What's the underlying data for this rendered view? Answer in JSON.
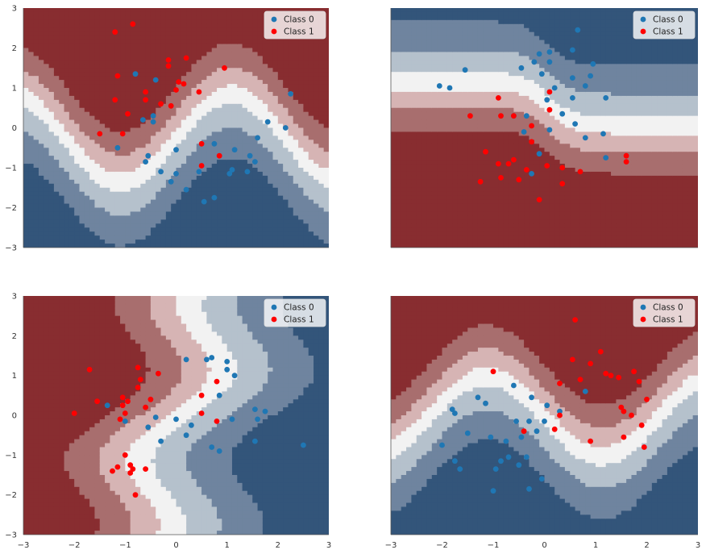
{
  "figure_title": "",
  "legend": {
    "entries": [
      {
        "label": "Class 0",
        "color": "#1f77b4"
      },
      {
        "label": "Class 1",
        "color": "#ff0000"
      }
    ]
  },
  "colors": {
    "class0_point": "#1f77b4",
    "class1_point": "#ff0000",
    "contour_levels_low_to_high": [
      "#33557a",
      "#6f849f",
      "#b5c1cc",
      "#f2f2f2",
      "#d6b4b4",
      "#a86e6e",
      "#882d30"
    ]
  },
  "chart_data": [
    {
      "type": "scatter",
      "subplot": "top-left",
      "title": "",
      "xlabel": "",
      "ylabel": "",
      "xlim": [
        -3,
        3
      ],
      "ylim": [
        -3,
        3
      ],
      "xticks": [],
      "yticks": [
        -3,
        -2,
        -1,
        0,
        1,
        2,
        3
      ],
      "ytick_labels": [
        "−3",
        "−2",
        "−1",
        "0",
        "1",
        "2",
        "3"
      ],
      "grid": false,
      "legend_position": "top-right",
      "background": "contour decision boundary: Class 1 (red) upper-left, Class 0 (blue) lower-right, S-shaped boundary",
      "series": [
        {
          "name": "Class 0",
          "points": [
            [
              -0.8,
              1.35
            ],
            [
              -0.4,
              1.2
            ],
            [
              -1.15,
              -0.5
            ],
            [
              -0.65,
              0.2
            ],
            [
              -0.45,
              0.3
            ],
            [
              -0.45,
              0.15
            ],
            [
              -0.55,
              -0.7
            ],
            [
              -0.6,
              -0.85
            ],
            [
              -0.3,
              -1.1
            ],
            [
              -0.1,
              -1.35
            ],
            [
              0.0,
              -0.55
            ],
            [
              0.0,
              -1.15
            ],
            [
              0.2,
              -1.55
            ],
            [
              0.45,
              -1.1
            ],
            [
              0.55,
              -1.85
            ],
            [
              0.75,
              -1.75
            ],
            [
              0.75,
              -0.4
            ],
            [
              1.05,
              -1.15
            ],
            [
              1.1,
              -1.05
            ],
            [
              1.15,
              -0.55
            ],
            [
              1.4,
              -1.1
            ],
            [
              1.45,
              -0.7
            ],
            [
              1.55,
              -0.85
            ],
            [
              1.6,
              -0.25
            ],
            [
              1.8,
              0.15
            ],
            [
              2.15,
              0.0
            ],
            [
              2.25,
              0.85
            ]
          ]
        },
        {
          "name": "Class 1",
          "points": [
            [
              -1.2,
              2.4
            ],
            [
              -0.85,
              2.6
            ],
            [
              -1.15,
              1.3
            ],
            [
              -1.2,
              0.7
            ],
            [
              -1.05,
              -0.15
            ],
            [
              -1.5,
              -0.15
            ],
            [
              -0.95,
              0.35
            ],
            [
              -0.6,
              0.9
            ],
            [
              -0.6,
              0.7
            ],
            [
              -0.3,
              0.6
            ],
            [
              -0.1,
              0.55
            ],
            [
              -0.15,
              1.55
            ],
            [
              -0.15,
              1.7
            ],
            [
              0.0,
              0.95
            ],
            [
              0.05,
              1.15
            ],
            [
              0.15,
              1.1
            ],
            [
              0.2,
              1.75
            ],
            [
              0.45,
              0.9
            ],
            [
              0.5,
              -0.4
            ],
            [
              0.5,
              -0.95
            ],
            [
              0.85,
              -0.7
            ],
            [
              0.95,
              1.5
            ]
          ]
        }
      ]
    },
    {
      "type": "scatter",
      "subplot": "top-right",
      "title": "",
      "xlabel": "",
      "ylabel": "",
      "xlim": [
        -3,
        3
      ],
      "ylim": [
        -3,
        3
      ],
      "xticks": [],
      "yticks": [],
      "grid": false,
      "legend_position": "top-right",
      "background": "contour decision boundary: Class 0 (blue) top, Class 1 (red) bottom, wavy horizontal boundary",
      "series": [
        {
          "name": "Class 0",
          "points": [
            [
              -2.05,
              1.05
            ],
            [
              -1.85,
              1.0
            ],
            [
              -1.55,
              1.45
            ],
            [
              -0.45,
              1.5
            ],
            [
              -0.35,
              0.3
            ],
            [
              -0.4,
              -0.1
            ],
            [
              -0.2,
              1.65
            ],
            [
              -0.1,
              1.85
            ],
            [
              -0.05,
              1.35
            ],
            [
              0.1,
              1.65
            ],
            [
              0.1,
              1.9
            ],
            [
              0.05,
              0.7
            ],
            [
              0.1,
              -0.05
            ],
            [
              0.2,
              1.0
            ],
            [
              0.55,
              1.95
            ],
            [
              0.65,
              2.45
            ],
            [
              0.55,
              1.25
            ],
            [
              0.55,
              0.75
            ],
            [
              0.6,
              0.1
            ],
            [
              0.8,
              1.05
            ],
            [
              0.9,
              1.3
            ],
            [
              0.95,
              1.6
            ],
            [
              0.8,
              -0.25
            ],
            [
              1.2,
              0.75
            ],
            [
              1.15,
              -0.15
            ],
            [
              1.2,
              -0.75
            ],
            [
              0.35,
              0.35
            ],
            [
              -0.1,
              -0.65
            ],
            [
              -0.25,
              -1.15
            ],
            [
              -0.6,
              0.3
            ]
          ]
        },
        {
          "name": "Class 1",
          "points": [
            [
              -1.45,
              0.3
            ],
            [
              -0.9,
              0.75
            ],
            [
              -0.85,
              0.3
            ],
            [
              -0.6,
              0.3
            ],
            [
              -0.25,
              -0.35
            ],
            [
              -0.25,
              0.05
            ],
            [
              0.1,
              0.45
            ],
            [
              0.1,
              0.9
            ],
            [
              -0.6,
              -0.8
            ],
            [
              -0.7,
              -0.9
            ],
            [
              -0.9,
              -0.9
            ],
            [
              -1.15,
              -0.6
            ],
            [
              -1.25,
              -1.35
            ],
            [
              -0.85,
              -1.25
            ],
            [
              -0.5,
              -1.3
            ],
            [
              -0.35,
              -1.05
            ],
            [
              -0.1,
              -1.8
            ],
            [
              0.05,
              -0.95
            ],
            [
              0.35,
              -1.0
            ],
            [
              0.35,
              -1.4
            ],
            [
              0.7,
              -1.1
            ],
            [
              1.6,
              -0.7
            ],
            [
              1.6,
              -0.85
            ]
          ]
        }
      ]
    },
    {
      "type": "scatter",
      "subplot": "bottom-left",
      "title": "",
      "xlabel": "",
      "ylabel": "",
      "xlim": [
        -3,
        3
      ],
      "ylim": [
        -3,
        3
      ],
      "xticks": [
        -3,
        -2,
        -1,
        0,
        1,
        2,
        3
      ],
      "xtick_labels": [
        "−3",
        "−2",
        "−1",
        "0",
        "1",
        "2",
        "3"
      ],
      "yticks": [
        -3,
        -2,
        -1,
        0,
        1,
        2,
        3
      ],
      "ytick_labels": [
        "−3",
        "−2",
        "−1",
        "0",
        "1",
        "2",
        "3"
      ],
      "grid": false,
      "legend_position": "top-right",
      "background": "contour decision boundary: Class 1 (red) left, Class 0 (blue) right, curved diagonal boundary",
      "series": [
        {
          "name": "Class 0",
          "points": [
            [
              -1.35,
              0.25
            ],
            [
              -1.0,
              -0.15
            ],
            [
              -0.55,
              -0.3
            ],
            [
              -0.4,
              -0.05
            ],
            [
              -0.3,
              -0.65
            ],
            [
              0.0,
              -0.1
            ],
            [
              0.2,
              -0.5
            ],
            [
              0.2,
              1.4
            ],
            [
              0.3,
              -0.25
            ],
            [
              0.6,
              1.4
            ],
            [
              0.7,
              1.45
            ],
            [
              0.85,
              0.5
            ],
            [
              0.85,
              -0.9
            ],
            [
              0.7,
              -0.8
            ],
            [
              1.0,
              1.35
            ],
            [
              1.0,
              1.15
            ],
            [
              1.15,
              1.0
            ],
            [
              1.1,
              -0.1
            ],
            [
              1.55,
              -0.65
            ],
            [
              1.55,
              0.15
            ],
            [
              1.6,
              -0.1
            ],
            [
              1.75,
              0.1
            ],
            [
              2.5,
              -0.75
            ]
          ]
        },
        {
          "name": "Class 1",
          "points": [
            [
              -2.0,
              0.05
            ],
            [
              -1.7,
              1.15
            ],
            [
              -1.55,
              0.35
            ],
            [
              -1.1,
              -0.1
            ],
            [
              -1.05,
              0.45
            ],
            [
              -1.05,
              0.25
            ],
            [
              -1.0,
              0.05
            ],
            [
              -1.0,
              -1.0
            ],
            [
              -0.95,
              0.35
            ],
            [
              -1.15,
              -1.3
            ],
            [
              -1.25,
              -1.4
            ],
            [
              -0.9,
              -1.25
            ],
            [
              -0.9,
              -1.45
            ],
            [
              -0.85,
              -1.35
            ],
            [
              -0.8,
              -2.0
            ],
            [
              -0.7,
              0.9
            ],
            [
              -0.75,
              1.2
            ],
            [
              -0.75,
              0.7
            ],
            [
              -0.6,
              -1.35
            ],
            [
              -0.5,
              0.4
            ],
            [
              -0.35,
              1.05
            ],
            [
              -0.6,
              0.2
            ],
            [
              0.5,
              0.5
            ],
            [
              0.5,
              0.05
            ],
            [
              0.8,
              -0.15
            ],
            [
              0.8,
              0.85
            ]
          ]
        }
      ]
    },
    {
      "type": "scatter",
      "subplot": "bottom-right",
      "title": "",
      "xlabel": "",
      "ylabel": "",
      "xlim": [
        -3,
        3
      ],
      "ylim": [
        -3,
        3
      ],
      "xticks": [
        -3,
        -2,
        -1,
        0,
        1,
        2,
        3
      ],
      "xtick_labels": [
        "−3",
        "−2",
        "−1",
        "0",
        "1",
        "2",
        "3"
      ],
      "yticks": [],
      "grid": false,
      "legend_position": "top-right",
      "background": "contour decision boundary: Class 1 (red) upper-right, Class 0 (blue) lower-left, S-shaped boundary",
      "series": [
        {
          "name": "Class 0",
          "points": [
            [
              -2.0,
              -0.75
            ],
            [
              -1.8,
              0.15
            ],
            [
              -1.75,
              0.05
            ],
            [
              -1.5,
              -0.45
            ],
            [
              -1.3,
              0.45
            ],
            [
              -1.15,
              0.3
            ],
            [
              -1.05,
              -0.55
            ],
            [
              -0.95,
              -1.35
            ],
            [
              -0.85,
              -1.15
            ],
            [
              -0.75,
              -0.65
            ],
            [
              -0.7,
              -1.05
            ],
            [
              -0.6,
              0.75
            ],
            [
              -0.55,
              -0.15
            ],
            [
              -0.5,
              -1.25
            ],
            [
              -0.45,
              -0.55
            ],
            [
              -0.35,
              -1.05
            ],
            [
              -0.3,
              -0.15
            ],
            [
              -0.25,
              0.45
            ],
            [
              -0.15,
              -0.4
            ],
            [
              0.0,
              -0.15
            ],
            [
              0.05,
              0.25
            ],
            [
              -0.05,
              -1.6
            ],
            [
              -0.3,
              -1.85
            ],
            [
              -1.0,
              -1.9
            ],
            [
              -1.75,
              -1.15
            ],
            [
              -1.65,
              -1.35
            ],
            [
              0.3,
              0.1
            ],
            [
              0.8,
              0.6
            ]
          ]
        },
        {
          "name": "Class 1",
          "points": [
            [
              -1.0,
              1.1
            ],
            [
              -0.4,
              -0.4
            ],
            [
              0.2,
              -0.35
            ],
            [
              0.3,
              0.0
            ],
            [
              0.3,
              0.8
            ],
            [
              0.55,
              1.4
            ],
            [
              0.6,
              2.4
            ],
            [
              0.7,
              0.9
            ],
            [
              0.9,
              1.3
            ],
            [
              0.9,
              -0.65
            ],
            [
              1.1,
              1.6
            ],
            [
              1.2,
              1.05
            ],
            [
              1.3,
              1.0
            ],
            [
              1.45,
              0.95
            ],
            [
              1.5,
              0.2
            ],
            [
              1.55,
              0.1
            ],
            [
              1.55,
              -0.55
            ],
            [
              1.7,
              0.0
            ],
            [
              1.75,
              1.1
            ],
            [
              1.85,
              0.85
            ],
            [
              1.9,
              -0.25
            ],
            [
              1.95,
              -0.8
            ],
            [
              2.0,
              0.4
            ]
          ]
        }
      ]
    }
  ]
}
